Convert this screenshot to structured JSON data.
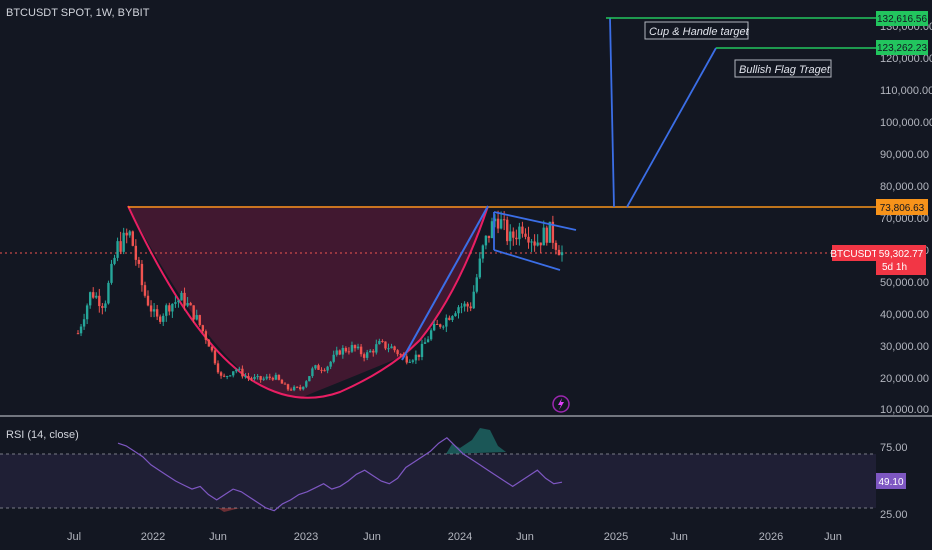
{
  "header": {
    "title": "BTCUSDT SPOT, 1W, BYBIT"
  },
  "colors": {
    "background": "#131722",
    "up": "#26a69a",
    "down": "#ef5350",
    "green": "#22c55e",
    "orange": "#f7931a",
    "blue": "#3b6ee6",
    "pink": "#e91e63",
    "rsi_line": "#7e57c2",
    "price_tag": "#f23645"
  },
  "chart_data": [
    {
      "type": "candlestick",
      "title": "BTCUSDT SPOT, 1W, BYBIT",
      "ylim": [
        10000,
        140000
      ],
      "yticks": [
        "10,000.00",
        "20,000.00",
        "30,000.00",
        "40,000.00",
        "50,000.00",
        "60,000.00",
        "70,000.00",
        "80,000.00",
        "90,000.00",
        "100,000.00",
        "110,000.00",
        "120,000.00",
        "130,000.00"
      ],
      "xticks": [
        "Jul",
        "2022",
        "Jun",
        "2023",
        "Jun",
        "2024",
        "Jun",
        "2025",
        "Jun",
        "2026",
        "Jun"
      ],
      "closes_path": [
        [
          "2021-07",
          34000
        ],
        [
          "2021-08",
          47000
        ],
        [
          "2021-09",
          43000
        ],
        [
          "2021-10",
          61000
        ],
        [
          "2021-11",
          65000
        ],
        [
          "2021-12",
          47000
        ],
        [
          "2022-01",
          38000
        ],
        [
          "2022-02",
          43000
        ],
        [
          "2022-03",
          45000
        ],
        [
          "2022-04",
          39000
        ],
        [
          "2022-05",
          31000
        ],
        [
          "2022-06",
          19500
        ],
        [
          "2022-07",
          23000
        ],
        [
          "2022-08",
          20000
        ],
        [
          "2022-09",
          19500
        ],
        [
          "2022-10",
          20500
        ],
        [
          "2022-11",
          16500
        ],
        [
          "2022-12",
          16500
        ],
        [
          "2023-01",
          23000
        ],
        [
          "2023-02",
          23500
        ],
        [
          "2023-03",
          28500
        ],
        [
          "2023-04",
          29500
        ],
        [
          "2023-05",
          27000
        ],
        [
          "2023-06",
          30500
        ],
        [
          "2023-07",
          29500
        ],
        [
          "2023-08",
          26000
        ],
        [
          "2023-09",
          27000
        ],
        [
          "2023-10",
          34500
        ],
        [
          "2023-11",
          38000
        ],
        [
          "2023-12",
          42500
        ],
        [
          "2024-01",
          42500
        ],
        [
          "2024-02",
          61000
        ],
        [
          "2024-03",
          71000
        ],
        [
          "2024-04",
          63000
        ],
        [
          "2024-05",
          68000
        ],
        [
          "2024-06",
          62500
        ],
        [
          "2024-07",
          66000
        ],
        [
          "2024-08",
          59302.77
        ]
      ],
      "levels": [
        {
          "label": "132,616.56",
          "value": 132616.56,
          "kind": "green"
        },
        {
          "label": "123,262.23",
          "value": 123262.23,
          "kind": "green"
        },
        {
          "label": "73,806.63",
          "value": 73806.63,
          "kind": "orange"
        }
      ],
      "current_price": {
        "symbol": "BTCUSDT",
        "price": "59,302.77",
        "countdown": "5d 1h"
      },
      "annotations": [
        "Cup & Handle target",
        "Bullish Flag Traget"
      ]
    },
    {
      "type": "line",
      "title": "RSI (14, close)",
      "ylim": [
        25,
        85
      ],
      "yticks": [
        "75.00",
        "25.00"
      ],
      "bands": [
        70,
        30
      ],
      "current": "49.10"
    }
  ]
}
